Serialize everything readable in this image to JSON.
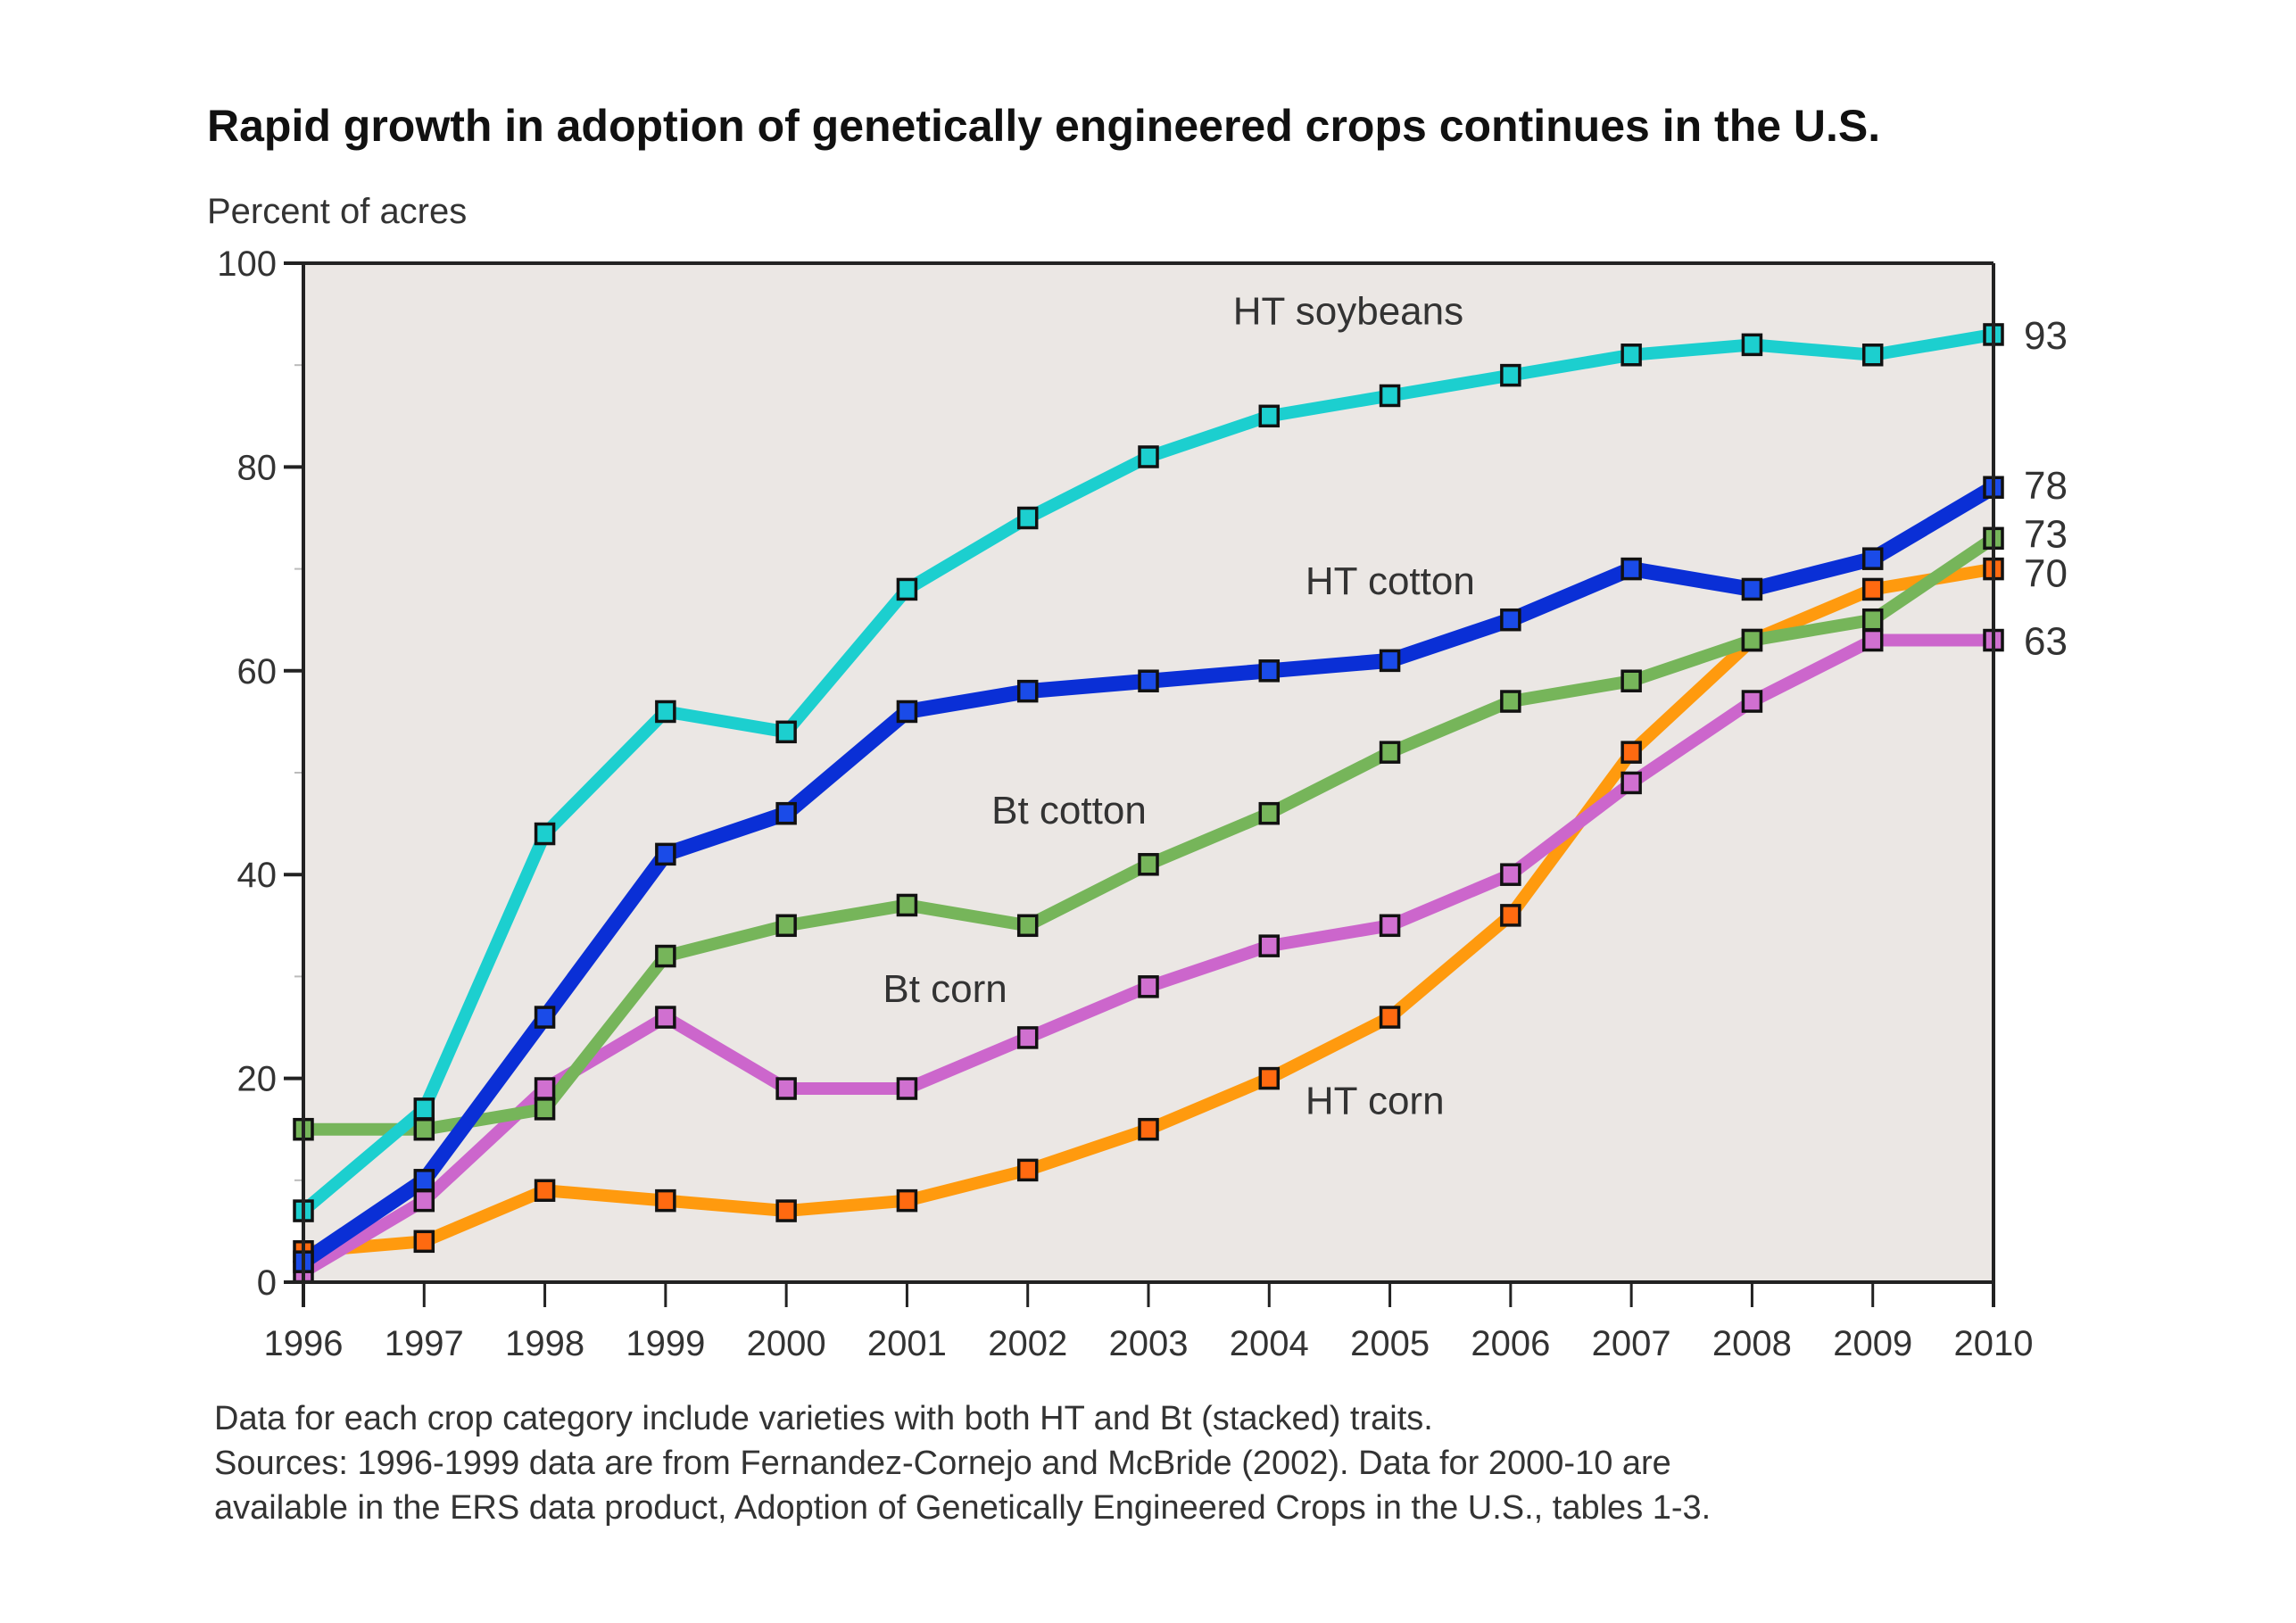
{
  "chart_data": {
    "type": "line",
    "title": "Rapid growth in adoption of genetically engineered crops continues in the U.S.",
    "ylabel": "Percent of acres",
    "xlabel": "",
    "ylim": [
      0,
      100
    ],
    "yticks": [
      0,
      20,
      40,
      60,
      80,
      100
    ],
    "x": [
      1996,
      1997,
      1998,
      1999,
      2000,
      2001,
      2002,
      2003,
      2004,
      2005,
      2006,
      2007,
      2008,
      2009,
      2010
    ],
    "grid": false,
    "legend": "inline labels",
    "series": [
      {
        "name": "HT soybeans",
        "color": "#1ccfcf",
        "end_label": "93",
        "values": [
          7,
          17,
          44,
          56,
          54,
          68,
          75,
          81,
          85,
          87,
          89,
          91,
          92,
          91,
          93
        ]
      },
      {
        "name": "HT cotton",
        "color": "#0a2fd6",
        "end_label": "78",
        "values": [
          2,
          10,
          26,
          42,
          46,
          56,
          58,
          59,
          60,
          61,
          65,
          70,
          68,
          71,
          78
        ]
      },
      {
        "name": "Bt cotton",
        "color": "#76b55a",
        "end_label": "73",
        "values": [
          15,
          15,
          17,
          32,
          35,
          37,
          35,
          41,
          46,
          52,
          57,
          59,
          63,
          65,
          73
        ]
      },
      {
        "name": "HT corn",
        "color": "#ff9a0e",
        "end_label": "70",
        "values": [
          3,
          4,
          9,
          8,
          7,
          8,
          11,
          15,
          20,
          26,
          36,
          52,
          63,
          68,
          70
        ]
      },
      {
        "name": "Bt corn",
        "color": "#cc66cc",
        "end_label": "63",
        "values": [
          1,
          8,
          19,
          26,
          19,
          19,
          24,
          29,
          33,
          35,
          40,
          49,
          57,
          63,
          63
        ]
      }
    ],
    "inline_labels": [
      {
        "series": "HT soybeans",
        "text": "HT soybeans",
        "at_x": 2003.7,
        "at_y": 94
      },
      {
        "series": "HT cotton",
        "text": "HT cotton",
        "at_x": 2004.3,
        "at_y": 67.5
      },
      {
        "series": "Bt cotton",
        "text": "Bt cotton",
        "at_x": 2001.7,
        "at_y": 45
      },
      {
        "series": "Bt corn",
        "text": "Bt corn",
        "at_x": 2000.8,
        "at_y": 27.5
      },
      {
        "series": "HT corn",
        "text": "HT corn",
        "at_x": 2004.3,
        "at_y": 16.5
      }
    ],
    "marker_colors": {
      "HT soybeans": "#1ccfcf",
      "HT cotton": "#1a4be8",
      "Bt cotton": "#76b55a",
      "HT corn": "#ff6a10",
      "Bt corn": "#d070d0"
    },
    "plot_background": "#ebe7e4",
    "notes": [
      "Data for each crop category include varieties with both HT and Bt (stacked) traits.",
      "Sources: 1996-1999 data are from Fernandez-Cornejo and McBride (2002). Data for 2000-10 are",
      "available in the ERS data product, Adoption of Genetically Engineered Crops in the U.S., tables 1-3."
    ]
  }
}
